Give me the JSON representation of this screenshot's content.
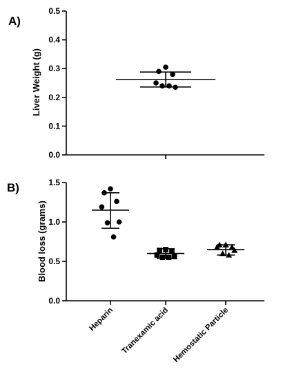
{
  "panels": [
    {
      "label": "A)"
    },
    {
      "label": "B)"
    }
  ],
  "chart_data": [
    {
      "type": "scatter",
      "title": "",
      "xlabel": "",
      "ylabel": "Liver Weight (g)",
      "ylim": [
        0,
        0.5
      ],
      "yticks": [
        "0.0",
        "0.1",
        "0.2",
        "0.3",
        "0.4",
        "0.5"
      ],
      "categories": [
        ""
      ],
      "series": [
        {
          "marker": "circle",
          "points": [
            0.305,
            0.29,
            0.28,
            0.25,
            0.235,
            0.24,
            0.24
          ],
          "mean": 0.262,
          "sd_upper": 0.288,
          "sd_lower": 0.236
        }
      ],
      "grid": false
    },
    {
      "type": "scatter",
      "title": "",
      "xlabel": "",
      "ylabel": "Blood loss (grams)",
      "ylim": [
        0,
        1.5
      ],
      "yticks": [
        "0.0",
        "0.5",
        "1.0",
        "1.5"
      ],
      "categories": [
        "Heparin",
        "Tranexamic acid",
        "Hemostatic Particle"
      ],
      "series": [
        {
          "marker": "circle",
          "points": [
            1.42,
            1.37,
            1.26,
            1.19,
            1.0,
            0.99,
            0.81
          ],
          "mean": 1.15,
          "sd_upper": 1.37,
          "sd_lower": 0.92
        },
        {
          "marker": "square",
          "points": [
            0.65,
            0.64,
            0.63,
            0.58,
            0.56,
            0.55,
            0.55
          ],
          "mean": 0.6,
          "sd_upper": 0.66,
          "sd_lower": 0.54
        },
        {
          "marker": "triangle",
          "points": [
            0.71,
            0.71,
            0.68,
            0.68,
            0.64,
            0.6,
            0.58
          ],
          "mean": 0.65,
          "sd_upper": 0.71,
          "sd_lower": 0.58
        }
      ],
      "grid": false
    }
  ]
}
